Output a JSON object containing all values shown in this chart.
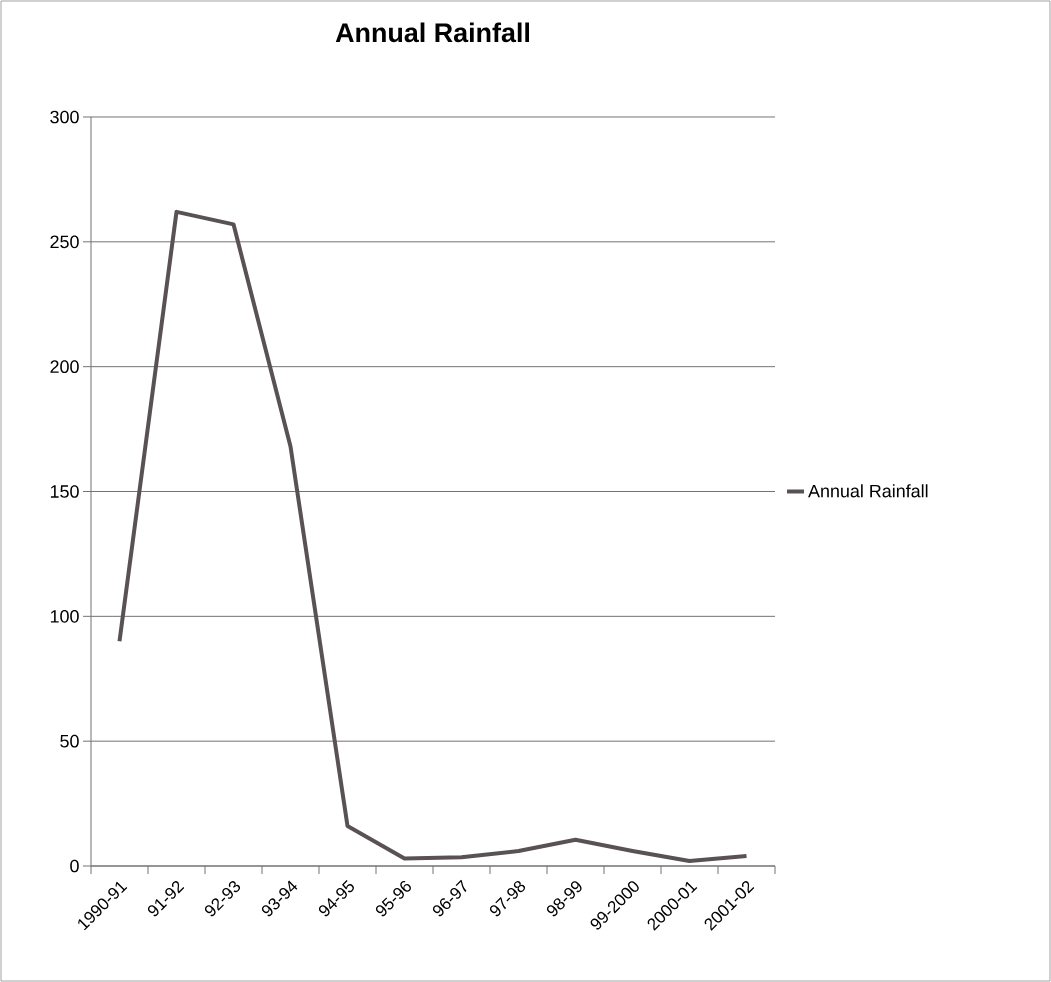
{
  "chart_data": {
    "type": "line",
    "title": "Annual Rainfall",
    "categories": [
      "1990-91",
      "91-92",
      "92-93",
      "93-94",
      "94-95",
      "95-96",
      "96-97",
      "97-98",
      "98-99",
      "99-2000",
      "2000-01",
      "2001-02"
    ],
    "series": [
      {
        "name": "Annual Rainfall",
        "color": "#5a5252",
        "values": [
          90,
          262,
          257,
          168,
          16,
          3,
          3.5,
          6,
          10.5,
          6,
          2,
          4
        ]
      }
    ],
    "ylim": [
      0,
      300
    ],
    "yticks": [
      0,
      50,
      100,
      150,
      200,
      250,
      300
    ],
    "grid": "y",
    "legend": "right",
    "marker": "none",
    "line_style": "solid"
  }
}
